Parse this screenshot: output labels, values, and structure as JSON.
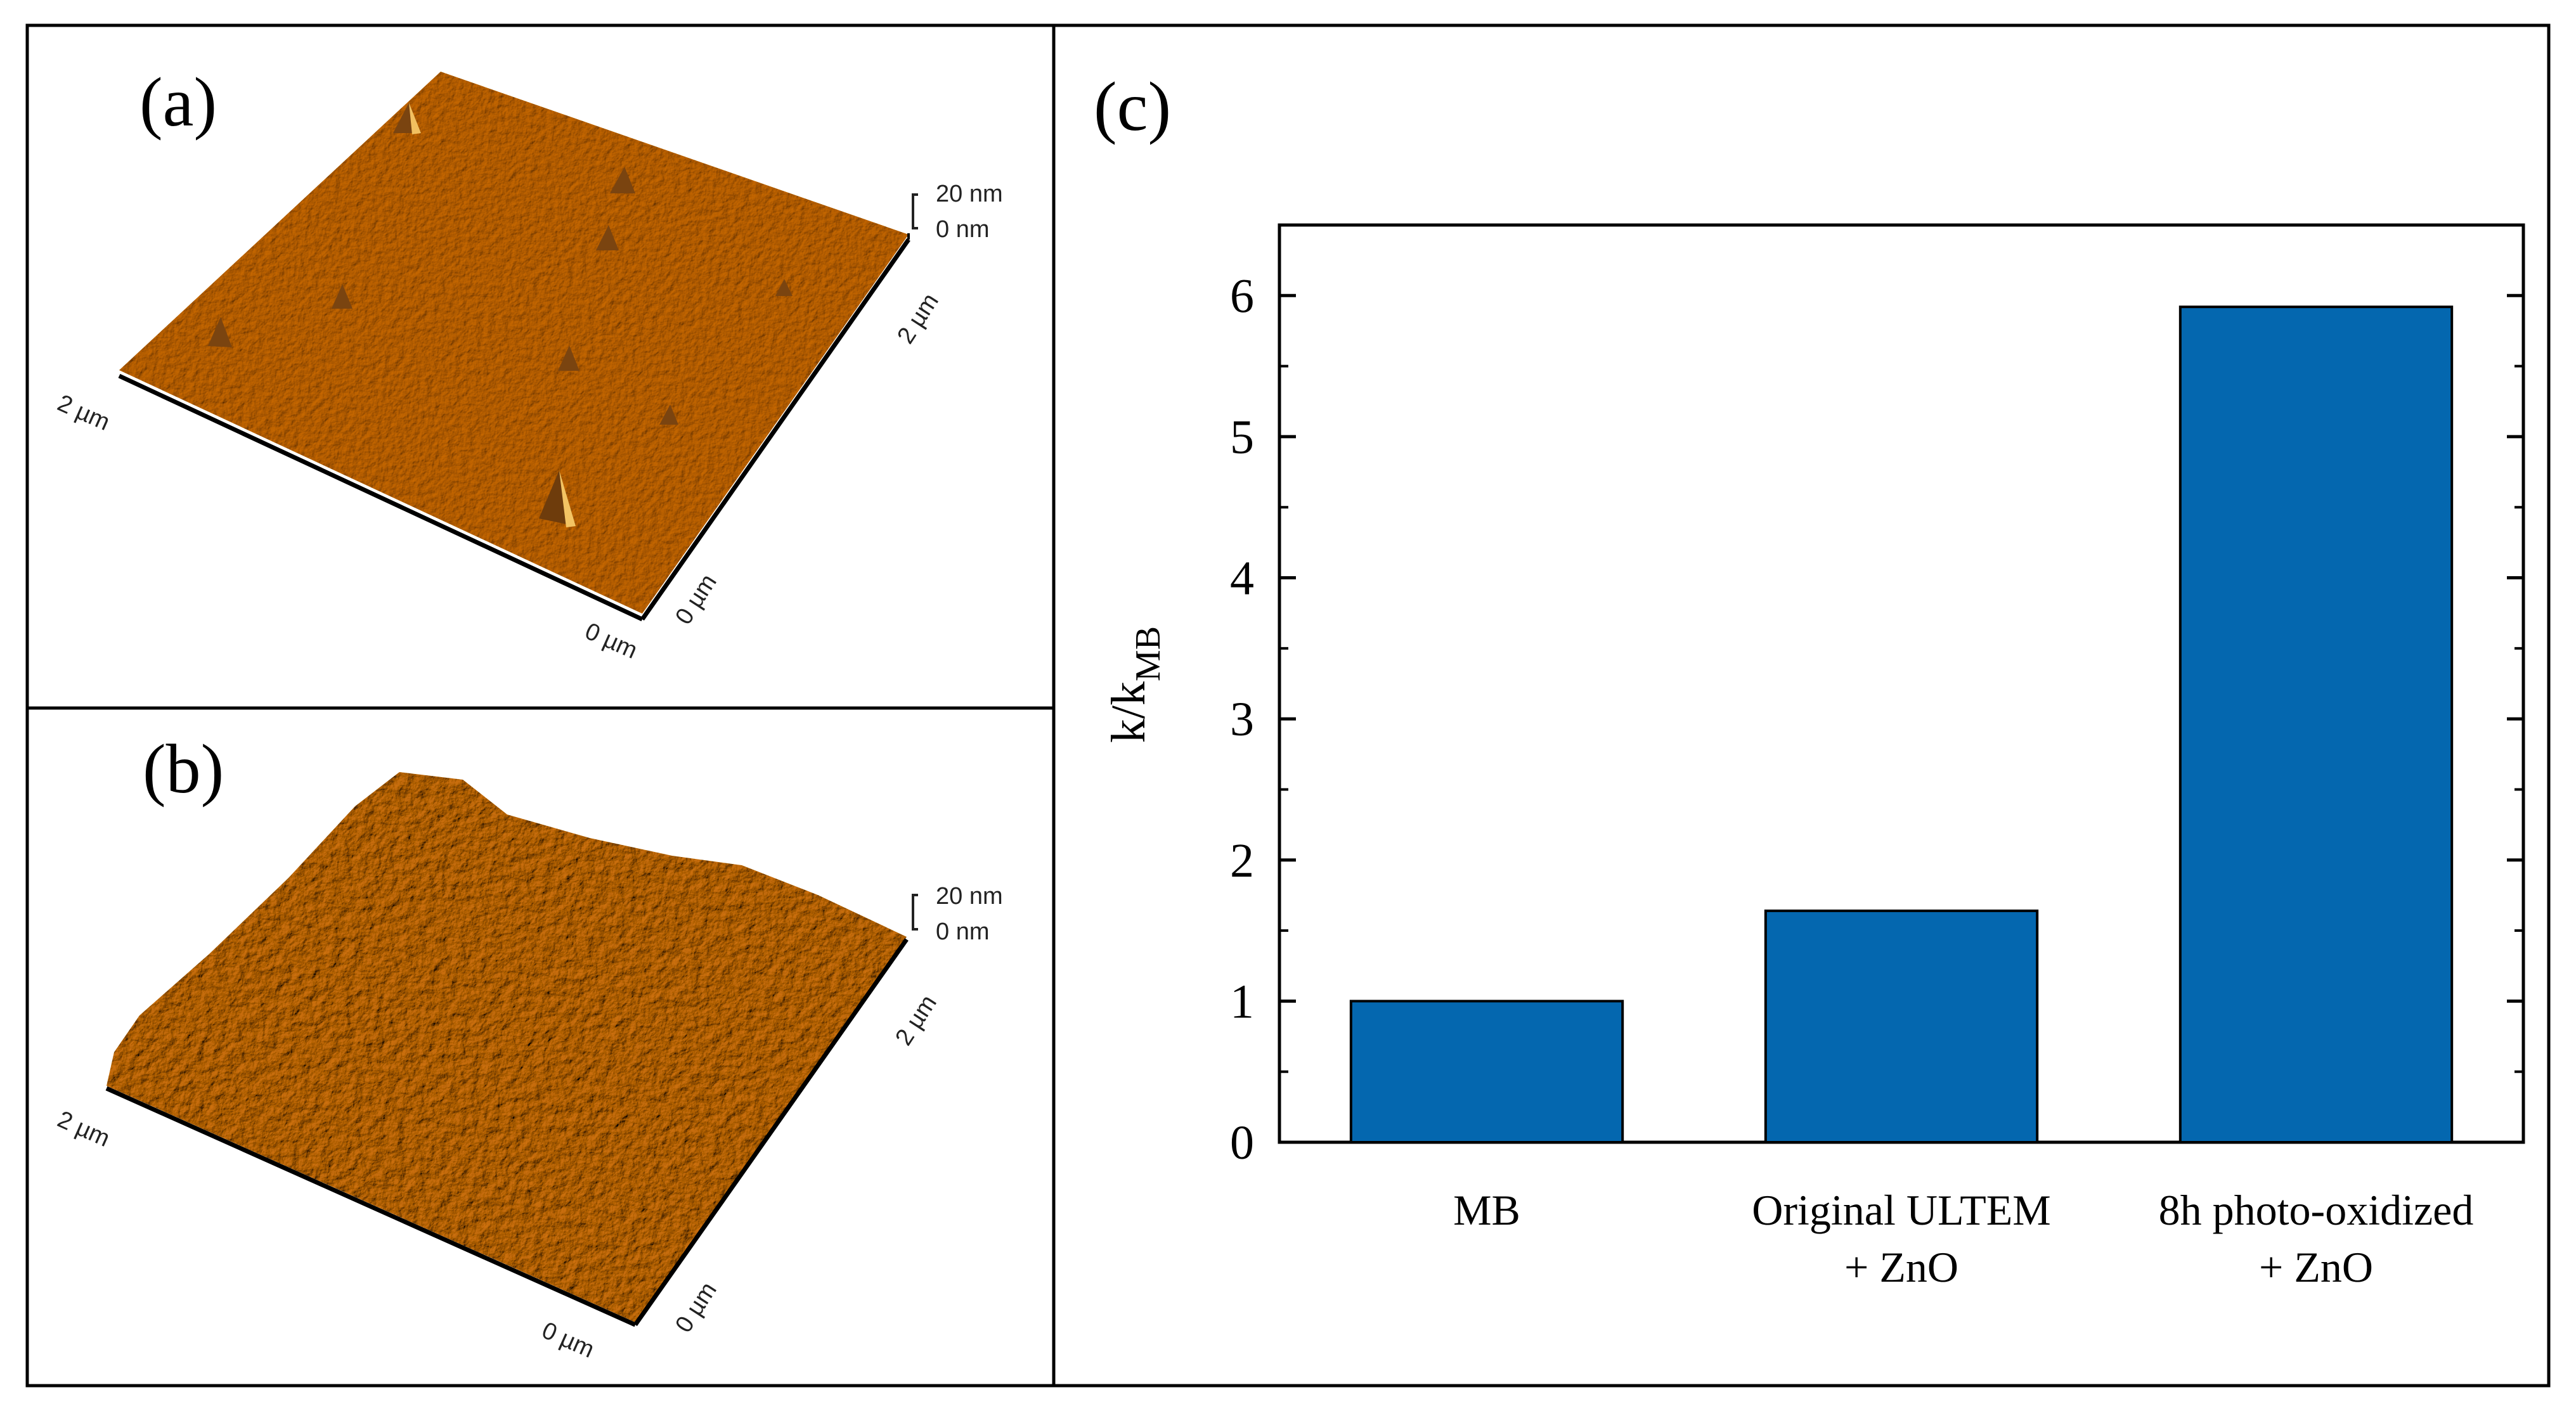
{
  "panels": {
    "a": {
      "label": "(a)",
      "scale_top": "20 nm",
      "scale_bottom": "0 nm",
      "axis_left": "2 µm",
      "axis_origin_front": "0 µm",
      "axis_origin_right": "0 µm",
      "axis_right": "2 µm"
    },
    "b": {
      "label": "(b)",
      "scale_top": "20 nm",
      "scale_bottom": "0 nm",
      "axis_left": "2 µm",
      "axis_origin_front": "0 µm",
      "axis_origin_right": "0 µm",
      "axis_right": "2 µm"
    },
    "c": {
      "label": "(c)"
    }
  },
  "colors": {
    "bar": "#0467AF",
    "afm_base": "#D08C1E",
    "afm_light": "#F2B545",
    "afm_dark": "#8A5010",
    "frame": "#000000"
  },
  "chart_data": {
    "type": "bar",
    "categories": [
      "MB",
      "Original ULTEM\n+ ZnO",
      "8h photo-oxidized\n+ ZnO"
    ],
    "values": [
      1.0,
      1.64,
      5.92
    ],
    "ylabel_main": "k/k",
    "ylabel_sub": "MB",
    "xlabel": "",
    "ylim": [
      0,
      6.5
    ],
    "yticks": [
      "0",
      "1",
      "2",
      "3",
      "4",
      "5",
      "6"
    ]
  }
}
